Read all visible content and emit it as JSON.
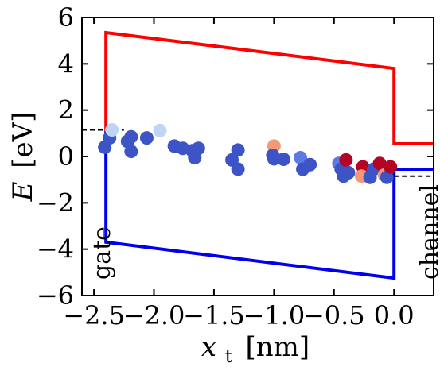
{
  "chart_data": {
    "type": "scatter",
    "xlabel": {
      "symbol": "x",
      "subscript": "t",
      "unit": "[nm]"
    },
    "ylabel": {
      "symbol": "E",
      "unit": "[eV]"
    },
    "xlim": [
      -2.6,
      0.33
    ],
    "ylim": [
      -6,
      6
    ],
    "xticks": [
      -2.5,
      -2.0,
      -1.5,
      -1.0,
      -0.5,
      0.0
    ],
    "xtick_labels": [
      "−2.5",
      "−2.0",
      "−1.5",
      "−1.0",
      "−0.5",
      "0.0"
    ],
    "yticks": [
      -6,
      -4,
      -2,
      0,
      2,
      4,
      6
    ],
    "ytick_labels": [
      "−6",
      "−4",
      "−2",
      "0",
      "2",
      "4",
      "6"
    ],
    "grid": false,
    "region_labels": {
      "gate": "gate",
      "channel": "channel"
    },
    "colors": {
      "conduction_band": "#ff0000",
      "valence_band": "#0000ee",
      "fermi_level": "#000000"
    },
    "conduction_band": {
      "x": [
        -2.4,
        -2.4,
        0.0,
        0.0,
        0.33
      ],
      "y": [
        1.1,
        5.35,
        3.8,
        0.55,
        0.55
      ]
    },
    "valence_band": {
      "x": [
        -2.4,
        -2.4,
        0.0,
        0.0,
        0.33
      ],
      "y": [
        1.1,
        -3.7,
        -5.25,
        -0.55,
        -0.55
      ]
    },
    "fermi_levels": [
      {
        "x": [
          -2.6,
          -2.25
        ],
        "y": [
          1.15,
          1.15
        ]
      },
      {
        "x": [
          0.0,
          0.33
        ],
        "y": [
          -0.85,
          -0.85
        ]
      }
    ],
    "points": [
      {
        "x": -2.37,
        "y": 0.8,
        "color": "#3d54c6"
      },
      {
        "x": -2.41,
        "y": 0.4,
        "color": "#3d54c6"
      },
      {
        "x": -2.35,
        "y": 1.15,
        "color": "#c0d4f5"
      },
      {
        "x": -2.22,
        "y": 0.65,
        "color": "#3d54c6"
      },
      {
        "x": -2.19,
        "y": 0.85,
        "color": "#3d54c6"
      },
      {
        "x": -2.19,
        "y": 0.22,
        "color": "#3d54c6"
      },
      {
        "x": -2.06,
        "y": 0.8,
        "color": "#3d54c6"
      },
      {
        "x": -1.95,
        "y": 1.12,
        "color": "#c0d4f5"
      },
      {
        "x": -1.83,
        "y": 0.45,
        "color": "#3d54c6"
      },
      {
        "x": -1.76,
        "y": 0.35,
        "color": "#3d54c6"
      },
      {
        "x": -1.68,
        "y": 0.25,
        "color": "#3d54c6"
      },
      {
        "x": -1.66,
        "y": -0.05,
        "color": "#3d54c6"
      },
      {
        "x": -1.63,
        "y": 0.35,
        "color": "#3d54c6"
      },
      {
        "x": -1.35,
        "y": -0.15,
        "color": "#3d54c6"
      },
      {
        "x": -1.3,
        "y": 0.28,
        "color": "#3d54c6"
      },
      {
        "x": -1.3,
        "y": -0.55,
        "color": "#3d54c6"
      },
      {
        "x": -1.0,
        "y": 0.45,
        "color": "#f4987a"
      },
      {
        "x": -1.01,
        "y": 0.05,
        "color": "#3d54c6"
      },
      {
        "x": -1.0,
        "y": -0.1,
        "color": "#3d54c6"
      },
      {
        "x": -0.92,
        "y": -0.12,
        "color": "#3d54c6"
      },
      {
        "x": -0.78,
        "y": -0.05,
        "color": "#5b7ae5"
      },
      {
        "x": -0.76,
        "y": -0.55,
        "color": "#3d54c6"
      },
      {
        "x": -0.7,
        "y": -0.35,
        "color": "#3d54c6"
      },
      {
        "x": -0.46,
        "y": -0.3,
        "color": "#5b7ae5"
      },
      {
        "x": -0.44,
        "y": -0.55,
        "color": "#3d54c6"
      },
      {
        "x": -0.42,
        "y": -0.85,
        "color": "#3d54c6"
      },
      {
        "x": -0.38,
        "y": -0.7,
        "color": "#3d54c6"
      },
      {
        "x": -0.4,
        "y": -0.15,
        "color": "#b40426"
      },
      {
        "x": -0.26,
        "y": -0.45,
        "color": "#b40426"
      },
      {
        "x": -0.27,
        "y": -0.85,
        "color": "#f4987a"
      },
      {
        "x": -0.2,
        "y": -0.9,
        "color": "#3d54c6"
      },
      {
        "x": -0.17,
        "y": -0.55,
        "color": "#3d54c6"
      },
      {
        "x": -0.12,
        "y": -0.3,
        "color": "#b40426"
      },
      {
        "x": -0.08,
        "y": -0.8,
        "color": "#f4987a"
      },
      {
        "x": -0.06,
        "y": -0.9,
        "color": "#3d54c6"
      },
      {
        "x": -0.03,
        "y": -0.45,
        "color": "#b40426"
      }
    ]
  }
}
